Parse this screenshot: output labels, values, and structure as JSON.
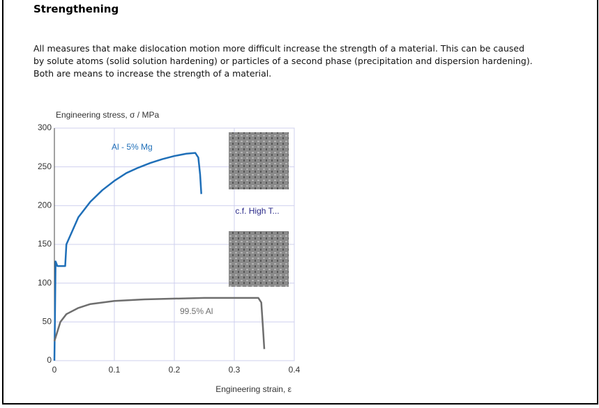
{
  "heading": "Strengthening",
  "paragraph": [
    "All measures that make dislocation motion more difficult increase the strength of a material. This can be caused",
    "by solute atoms (solid solution hardening) or particles of a second phase (precipitation and dispersion hardening).",
    "Both are means to increase the strength of a material."
  ],
  "chart_data": {
    "type": "line",
    "ylabel": "Engineering stress, σ / MPa",
    "xlabel": "Engineering strain, ε",
    "annotation": "c.f. High T...",
    "xlim": [
      0,
      0.4
    ],
    "xticks": [
      0,
      0.1,
      0.2,
      0.3,
      0.4
    ],
    "ylim": [
      0,
      300
    ],
    "yticks": [
      0,
      50,
      100,
      150,
      200,
      250,
      300
    ],
    "grid": true,
    "series": [
      {
        "name": "Al - 5% Mg",
        "color": "#1f6fb8",
        "x": [
          0,
          0.001,
          0.002,
          0.005,
          0.018,
          0.02,
          0.04,
          0.06,
          0.08,
          0.1,
          0.12,
          0.14,
          0.16,
          0.18,
          0.2,
          0.22,
          0.235,
          0.24,
          0.243,
          0.245
        ],
        "values": [
          0,
          60,
          128,
          122,
          122,
          150,
          185,
          205,
          220,
          232,
          242,
          249,
          255,
          260,
          264,
          267,
          268,
          262,
          240,
          215
        ]
      },
      {
        "name": "99.5% Al",
        "color": "#6e6e6e",
        "x": [
          0,
          0.01,
          0.02,
          0.04,
          0.06,
          0.1,
          0.15,
          0.2,
          0.25,
          0.3,
          0.34,
          0.345,
          0.348,
          0.35
        ],
        "values": [
          25,
          50,
          60,
          68,
          73,
          77,
          79,
          80,
          81,
          81,
          81,
          75,
          40,
          15
        ]
      }
    ]
  }
}
